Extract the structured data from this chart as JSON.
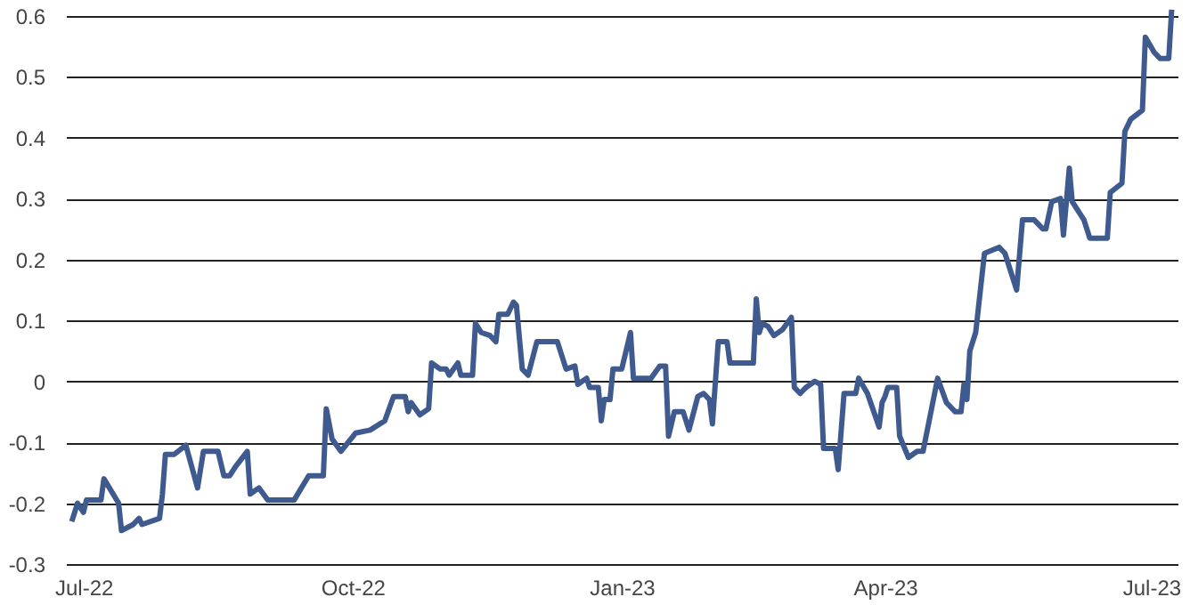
{
  "chart_data": {
    "type": "line",
    "color": "#3f5a8e",
    "line_style": "solid",
    "marker": "none",
    "grid": "y",
    "x": [
      "2022-06-27",
      "2022-06-29",
      "2022-07-01",
      "2022-07-02",
      "2022-07-07",
      "2022-07-08",
      "2022-07-13",
      "2022-07-14",
      "2022-07-18",
      "2022-07-20",
      "2022-07-21",
      "2022-07-27",
      "2022-07-28",
      "2022-07-29",
      "2022-08-01",
      "2022-08-05",
      "2022-08-09",
      "2022-08-11",
      "2022-08-16",
      "2022-08-18",
      "2022-08-20",
      "2022-08-22",
      "2022-08-26",
      "2022-08-27",
      "2022-08-30",
      "2022-09-02",
      "2022-09-11",
      "2022-09-16",
      "2022-09-21",
      "2022-09-22",
      "2022-09-24",
      "2022-09-27",
      "2022-10-02",
      "2022-10-07",
      "2022-10-12",
      "2022-10-15",
      "2022-10-19",
      "2022-10-20",
      "2022-10-21",
      "2022-10-24",
      "2022-10-27",
      "2022-10-28",
      "2022-10-31",
      "2022-11-02",
      "2022-11-03",
      "2022-11-06",
      "2022-11-07",
      "2022-11-11",
      "2022-11-12",
      "2022-11-14",
      "2022-11-17",
      "2022-11-19",
      "2022-11-20",
      "2022-11-23",
      "2022-11-25",
      "2022-11-26",
      "2022-11-28",
      "2022-11-30",
      "2022-12-03",
      "2022-12-10",
      "2022-12-13",
      "2022-12-16",
      "2022-12-17",
      "2022-12-20",
      "2022-12-21",
      "2022-12-24",
      "2022-12-25",
      "2022-12-26",
      "2022-12-28",
      "2022-12-29",
      "2023-01-01",
      "2023-01-04",
      "2023-01-05",
      "2023-01-08",
      "2023-01-11",
      "2023-01-14",
      "2023-01-16",
      "2023-01-17",
      "2023-01-19",
      "2023-01-22",
      "2023-01-24",
      "2023-01-27",
      "2023-01-29",
      "2023-01-31",
      "2023-02-01",
      "2023-02-03",
      "2023-02-06",
      "2023-02-07",
      "2023-02-15",
      "2023-02-16",
      "2023-02-17",
      "2023-02-18",
      "2023-02-20",
      "2023-02-22",
      "2023-02-25",
      "2023-02-28",
      "2023-03-01",
      "2023-03-03",
      "2023-03-05",
      "2023-03-08",
      "2023-03-10",
      "2023-03-11",
      "2023-03-15",
      "2023-03-16",
      "2023-03-18",
      "2023-03-22",
      "2023-03-23",
      "2023-03-26",
      "2023-03-30",
      "2023-03-31",
      "2023-04-01",
      "2023-04-02",
      "2023-04-05",
      "2023-04-06",
      "2023-04-09",
      "2023-04-12",
      "2023-04-14",
      "2023-04-19",
      "2023-04-22",
      "2023-04-25",
      "2023-04-27",
      "2023-04-28",
      "2023-04-29",
      "2023-04-30",
      "2023-05-02",
      "2023-05-05",
      "2023-05-10",
      "2023-05-12",
      "2023-05-16",
      "2023-05-18",
      "2023-05-22",
      "2023-05-25",
      "2023-05-26",
      "2023-05-28",
      "2023-05-31",
      "2023-06-01",
      "2023-06-03",
      "2023-06-04",
      "2023-06-06",
      "2023-06-08",
      "2023-06-10",
      "2023-06-16",
      "2023-06-17",
      "2023-06-21",
      "2023-06-22",
      "2023-06-24",
      "2023-06-28",
      "2023-06-29",
      "2023-07-02",
      "2023-07-04",
      "2023-07-07",
      "2023-07-08"
    ],
    "values": [
      -0.23,
      -0.2,
      -0.215,
      -0.195,
      -0.195,
      -0.16,
      -0.2,
      -0.245,
      -0.235,
      -0.225,
      -0.235,
      -0.225,
      -0.185,
      -0.12,
      -0.12,
      -0.105,
      -0.175,
      -0.115,
      -0.115,
      -0.155,
      -0.155,
      -0.14,
      -0.115,
      -0.185,
      -0.175,
      -0.195,
      -0.195,
      -0.155,
      -0.155,
      -0.045,
      -0.095,
      -0.115,
      -0.085,
      -0.08,
      -0.065,
      -0.025,
      -0.025,
      -0.05,
      -0.035,
      -0.055,
      -0.045,
      0.03,
      0.02,
      0.02,
      0.01,
      0.03,
      0.01,
      0.01,
      0.095,
      0.08,
      0.075,
      0.065,
      0.11,
      0.11,
      0.13,
      0.125,
      0.02,
      0.01,
      0.065,
      0.065,
      0.02,
      0.025,
      -0.005,
      0.005,
      -0.01,
      -0.01,
      -0.065,
      -0.03,
      -0.03,
      0.02,
      0.02,
      0.08,
      0.005,
      0.005,
      0.005,
      0.025,
      0.025,
      -0.09,
      -0.05,
      -0.05,
      -0.08,
      -0.025,
      -0.02,
      -0.03,
      -0.07,
      0.065,
      0.065,
      0.03,
      0.03,
      0.135,
      0.08,
      0.095,
      0.09,
      0.075,
      0.085,
      0.105,
      -0.01,
      -0.02,
      -0.01,
      0.0,
      -0.005,
      -0.11,
      -0.11,
      -0.145,
      -0.02,
      -0.02,
      0.005,
      -0.02,
      -0.075,
      -0.035,
      -0.025,
      -0.01,
      -0.01,
      -0.09,
      -0.125,
      -0.115,
      -0.115,
      0.005,
      -0.035,
      -0.05,
      -0.05,
      -0.005,
      -0.03,
      0.05,
      0.08,
      0.21,
      0.22,
      0.21,
      0.15,
      0.265,
      0.265,
      0.25,
      0.25,
      0.295,
      0.3,
      0.24,
      0.35,
      0.295,
      0.28,
      0.265,
      0.235,
      0.235,
      0.31,
      0.325,
      0.41,
      0.43,
      0.445,
      0.565,
      0.54,
      0.53,
      0.53,
      0.61
    ],
    "xlim": [
      "2022-06-25",
      "2023-07-10"
    ],
    "xticks": [
      {
        "value": "2022-07-01",
        "label": "Jul-22"
      },
      {
        "value": "2022-10-01",
        "label": "Oct-22"
      },
      {
        "value": "2023-01-01",
        "label": "Jan-23"
      },
      {
        "value": "2023-04-01",
        "label": "Apr-23"
      },
      {
        "value": "2023-07-01",
        "label": "Jul-23"
      }
    ],
    "ylim": [
      -0.3,
      0.62
    ],
    "yticks": [
      -0.3,
      -0.2,
      -0.1,
      0,
      0.1,
      0.2,
      0.3,
      0.4,
      0.5,
      0.6
    ]
  }
}
